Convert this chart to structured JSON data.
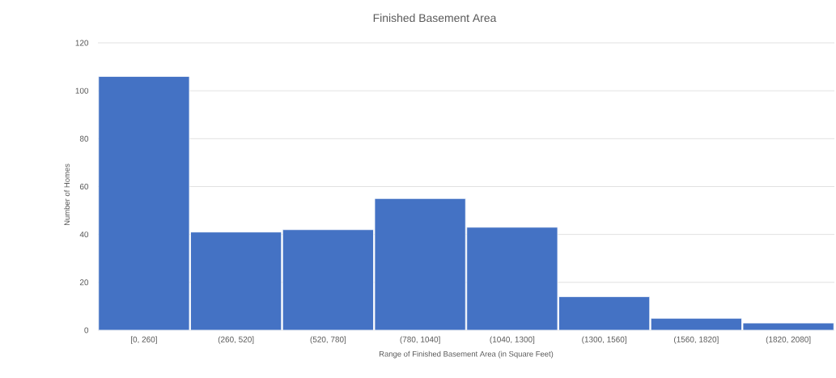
{
  "chart_data": {
    "type": "bar",
    "title": "Finished Basement Area",
    "xlabel": "Range of Finished Basement Area (in Square Feet)",
    "ylabel": "Number of Homes",
    "categories": [
      "[0, 260]",
      "(260, 520]",
      "(520, 780]",
      "(780, 1040]",
      "(1040, 1300]",
      "(1300, 1560]",
      "(1560, 1820]",
      "(1820, 2080]"
    ],
    "values": [
      106,
      41,
      42,
      55,
      43,
      14,
      5,
      3
    ],
    "color": "#4472c4",
    "ylim": [
      0,
      120
    ],
    "yticks": [
      0,
      20,
      40,
      60,
      80,
      100,
      120
    ],
    "grid": "y"
  }
}
